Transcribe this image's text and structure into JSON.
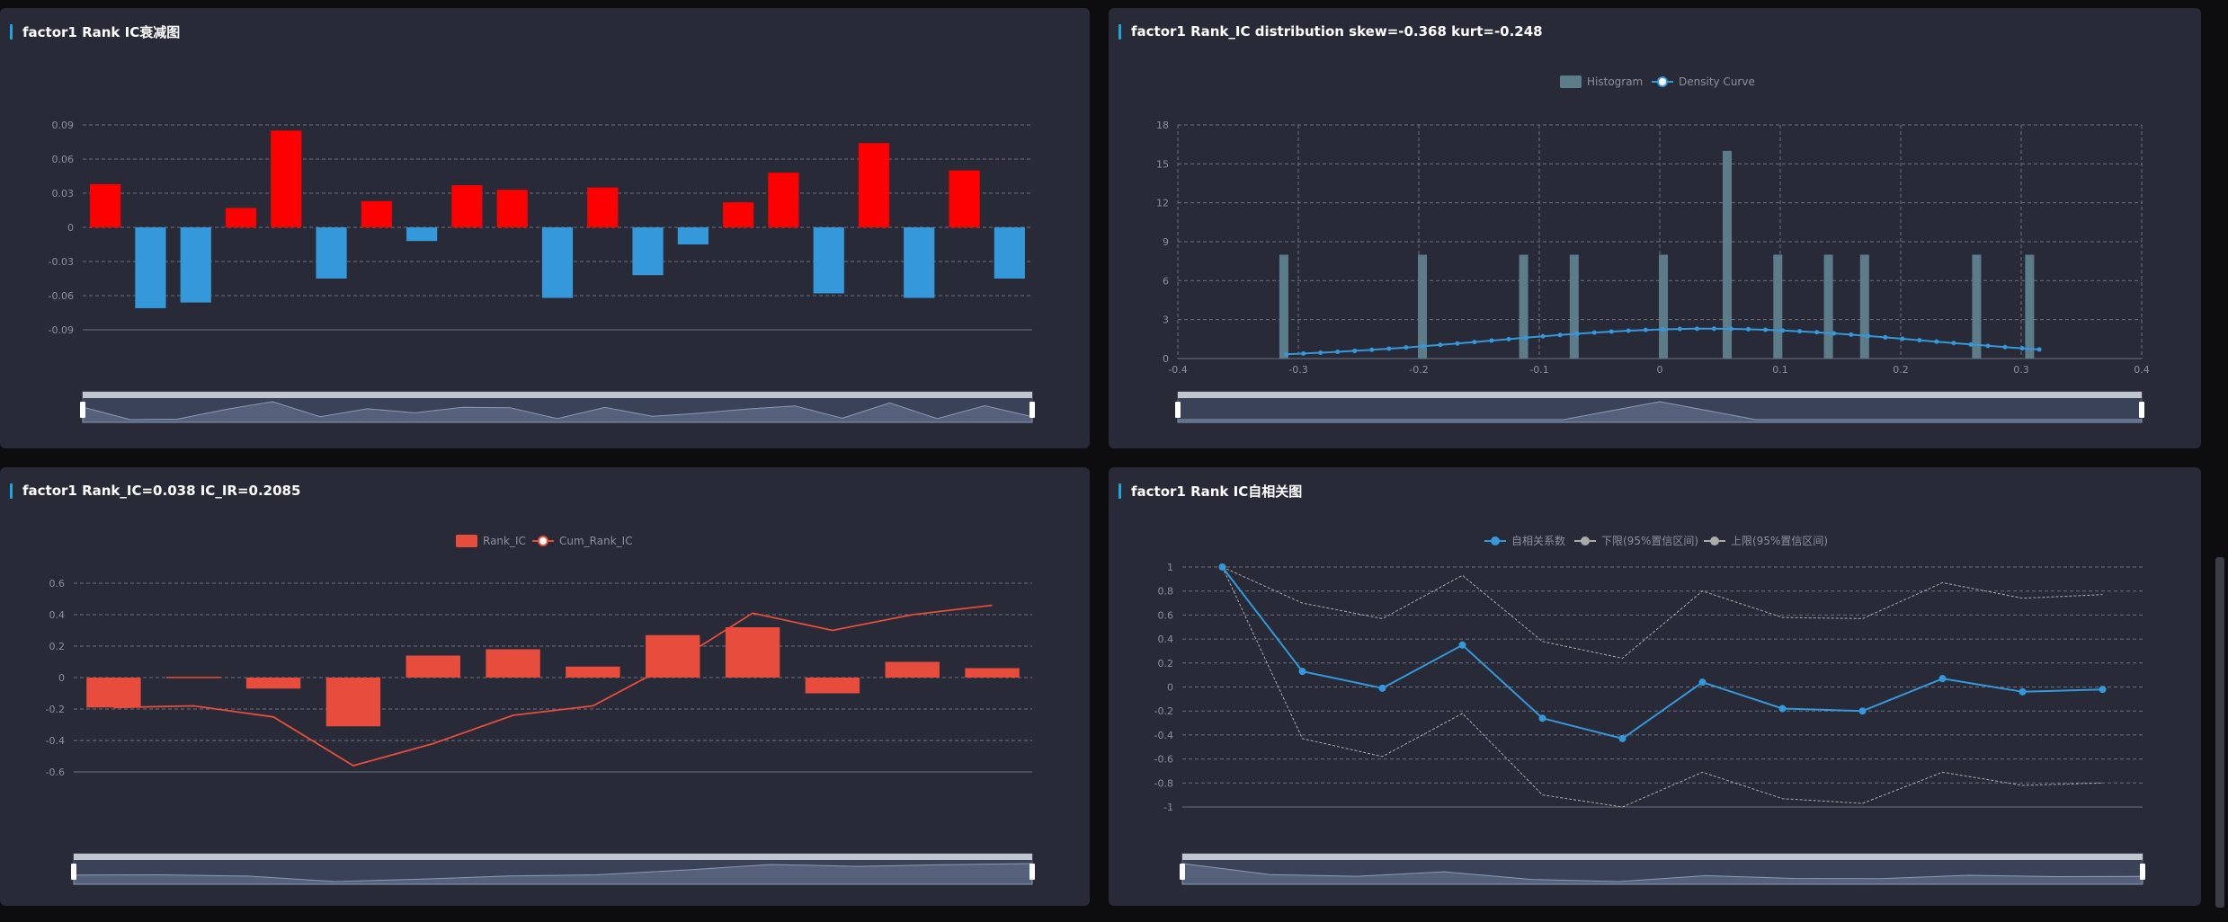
{
  "colors": {
    "background": "#0d0d0f",
    "panel": "#282b37",
    "title_accent": "#1fa7d9",
    "positive_bar": "#ff0000",
    "negative_bar": "#3498db",
    "histogram": "#5c7c8a",
    "density": "#3498db",
    "rank_ic_bar": "#e74c3c",
    "cum_line": "#e74c3c",
    "autocorr": "#3498db",
    "bounds": "#aaaaaa"
  },
  "panels": {
    "p1": {
      "title": "factor1 Rank IC衰减图"
    },
    "p2": {
      "title": "factor1 Rank_IC distribution skew=-0.368 kurt=-0.248"
    },
    "p3": {
      "title": "factor1 Rank_IC=0.038 IC_IR=0.2085"
    },
    "p4": {
      "title": "factor1 Rank IC自相关图"
    }
  },
  "chart_data": [
    {
      "id": "decay",
      "type": "bar",
      "title": "factor1 Rank IC衰减图",
      "ylim": [
        -0.09,
        0.09
      ],
      "yticks": [
        "0.09",
        "0.06",
        "0.03",
        "0",
        "-0.03",
        "-0.06",
        "-0.09"
      ],
      "values": [
        0.038,
        -0.071,
        -0.066,
        0.017,
        0.085,
        -0.045,
        0.023,
        -0.012,
        0.037,
        0.033,
        -0.062,
        0.035,
        -0.042,
        -0.015,
        0.022,
        0.048,
        -0.058,
        0.074,
        -0.062,
        0.05,
        -0.045
      ],
      "grid": true,
      "data_zoom": true
    },
    {
      "id": "distribution",
      "type": "bar",
      "title": "factor1 Rank_IC distribution skew=-0.368 kurt=-0.248",
      "legend": [
        "Histogram",
        "Density Curve"
      ],
      "xlim": [
        -0.4,
        0.4
      ],
      "xticks": [
        "-0.4",
        "-0.3",
        "-0.2",
        "-0.1",
        "0",
        "0.1",
        "0.2",
        "0.3",
        "0.4"
      ],
      "ylim": [
        0,
        18
      ],
      "yticks": [
        "18",
        "15",
        "12",
        "9",
        "6",
        "3",
        "0"
      ],
      "histogram": [
        {
          "x": -0.312,
          "y": 8
        },
        {
          "x": -0.197,
          "y": 8
        },
        {
          "x": -0.113,
          "y": 8
        },
        {
          "x": -0.071,
          "y": 8
        },
        {
          "x": 0.003,
          "y": 8
        },
        {
          "x": 0.056,
          "y": 16
        },
        {
          "x": 0.098,
          "y": 8
        },
        {
          "x": 0.14,
          "y": 8
        },
        {
          "x": 0.17,
          "y": 8
        },
        {
          "x": 0.263,
          "y": 8
        },
        {
          "x": 0.307,
          "y": 8
        }
      ],
      "density_range": [
        -0.31,
        0.315
      ],
      "density_mu": 0.04,
      "density_sigma": 0.178,
      "density_peak": 2.3,
      "density_points": 45,
      "grid": true,
      "data_zoom": true
    },
    {
      "id": "rank_ic",
      "type": "bar",
      "title": "factor1 Rank_IC=0.038 IC_IR=0.2085",
      "legend": [
        "Rank_IC",
        "Cum_Rank_IC"
      ],
      "ylim": [
        -0.6,
        0.6
      ],
      "yticks": [
        "0.6",
        "0.4",
        "0.2",
        "0",
        "-0.2",
        "-0.4",
        "-0.6"
      ],
      "series": [
        {
          "name": "Rank_IC",
          "values": [
            -0.19,
            0.005,
            -0.07,
            -0.31,
            0.14,
            0.18,
            0.07,
            0.27,
            0.32,
            -0.1,
            0.1,
            0.06
          ]
        },
        {
          "name": "Cum_Rank_IC",
          "values": [
            -0.19,
            -0.18,
            -0.25,
            -0.56,
            -0.42,
            -0.24,
            -0.18,
            0.09,
            0.41,
            0.3,
            0.4,
            0.46
          ]
        }
      ],
      "grid": true,
      "data_zoom": true
    },
    {
      "id": "autocorr",
      "type": "line",
      "title": "factor1 Rank IC自相关图",
      "legend": [
        "自相关系数",
        "下限(95%置信区间)",
        "上限(95%置信区间)"
      ],
      "ylim": [
        -1,
        1
      ],
      "yticks": [
        "1",
        "0.8",
        "0.6",
        "0.4",
        "0.2",
        "0",
        "-0.2",
        "-0.4",
        "-0.6",
        "-0.8",
        "-1"
      ],
      "series": [
        {
          "name": "自相关系数",
          "values": [
            1,
            0.13,
            -0.01,
            0.35,
            -0.26,
            -0.43,
            0.04,
            -0.18,
            -0.2,
            0.07,
            -0.04,
            -0.02
          ]
        },
        {
          "name": "下限(95%置信区间)",
          "values": [
            1,
            -0.43,
            -0.58,
            -0.22,
            -0.9,
            -1.03,
            -0.71,
            -0.93,
            -0.97,
            -0.71,
            -0.82,
            -0.8
          ]
        },
        {
          "name": "上限(95%置信区间)",
          "values": [
            1,
            0.7,
            0.57,
            0.93,
            0.38,
            0.24,
            0.8,
            0.58,
            0.57,
            0.87,
            0.74,
            0.77
          ]
        }
      ],
      "grid": true,
      "data_zoom": true
    }
  ]
}
